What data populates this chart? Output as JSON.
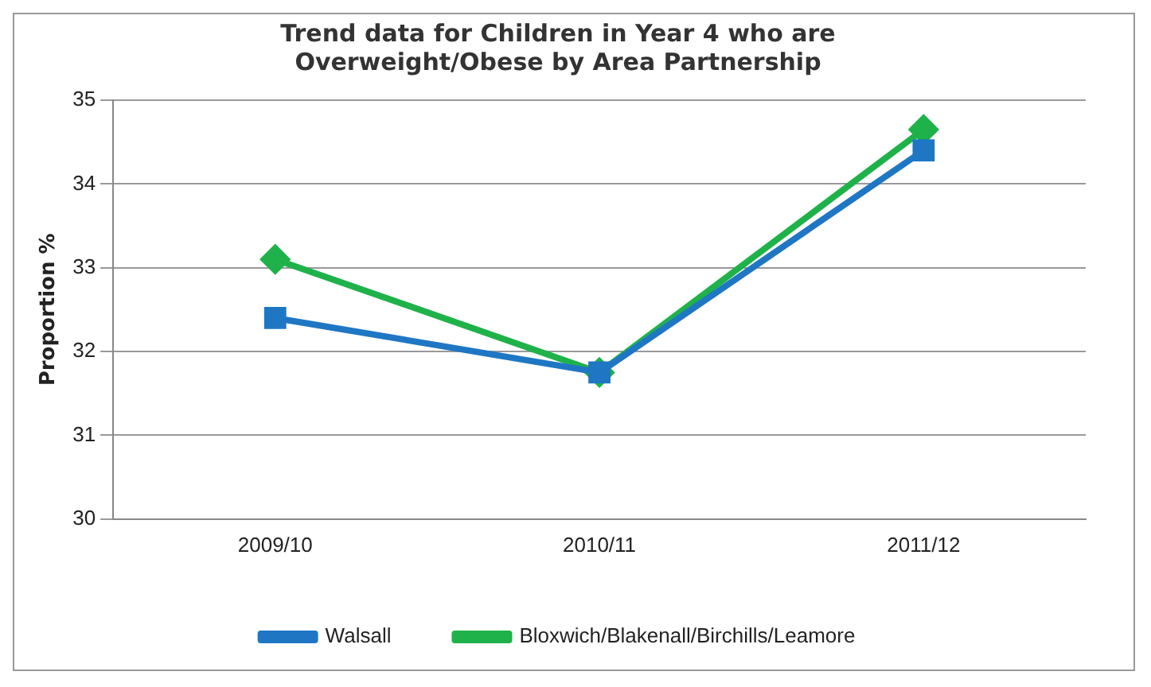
{
  "chart_data": {
    "type": "line",
    "title": "Trend data for Children in Year 4 who are Overweight/Obese by Area Partnership",
    "categories": [
      "2009/10",
      "2010/11",
      "2011/12"
    ],
    "series": [
      {
        "name": "Bloxwich/Blakenall/Birchills/Leamore",
        "color": "#1fb24a",
        "values": [
          33.1,
          31.75,
          34.65
        ],
        "marker": "diamond"
      },
      {
        "name": "Walsall",
        "color": "#1f77c4",
        "values": [
          32.4,
          31.75,
          34.4
        ],
        "marker": "square"
      }
    ],
    "ylabel": "Proportion %",
    "ylim": [
      30,
      35
    ],
    "yticks": [
      30,
      31,
      32,
      33,
      34,
      35
    ],
    "grid": "y",
    "legend": "bottom",
    "line_style": "solid"
  }
}
